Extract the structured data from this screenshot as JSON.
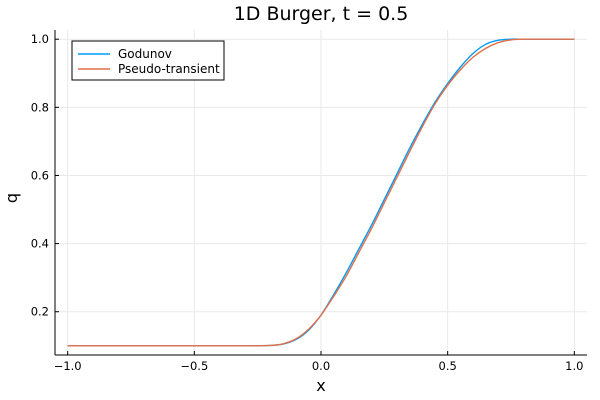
{
  "chart_data": {
    "type": "line",
    "title": "1D Burger, t = 0.5",
    "xlabel": "x",
    "ylabel": "q",
    "xlim": [
      -1.05,
      1.05
    ],
    "ylim": [
      0.073,
      1.027
    ],
    "xticks": [
      -1.0,
      -0.5,
      0.0,
      0.5,
      1.0
    ],
    "xtick_labels": [
      "−1.0",
      "−0.5",
      "0.0",
      "0.5",
      "1.0"
    ],
    "yticks": [
      0.2,
      0.4,
      0.6,
      0.8,
      1.0
    ],
    "ytick_labels": [
      "0.2",
      "0.4",
      "0.6",
      "0.8",
      "1.0"
    ],
    "grid": true,
    "legend_position": "top-left",
    "series": [
      {
        "name": "Godunov",
        "color": "#009AFA",
        "x": [
          -1.0,
          -0.5,
          -0.3,
          -0.2,
          -0.15,
          -0.1,
          -0.05,
          0.0,
          0.05,
          0.1,
          0.15,
          0.2,
          0.25,
          0.3,
          0.35,
          0.4,
          0.45,
          0.5,
          0.55,
          0.6,
          0.65,
          0.7,
          0.75,
          0.8,
          0.9,
          1.0
        ],
        "y": [
          0.1,
          0.1,
          0.1,
          0.101,
          0.105,
          0.118,
          0.145,
          0.19,
          0.25,
          0.315,
          0.385,
          0.455,
          0.53,
          0.605,
          0.68,
          0.75,
          0.815,
          0.87,
          0.918,
          0.958,
          0.985,
          0.997,
          1.0,
          1.0,
          1.0,
          1.0
        ]
      },
      {
        "name": "Pseudo-transient",
        "color": "#E26F46",
        "x": [
          -1.0,
          -0.5,
          -0.3,
          -0.2,
          -0.15,
          -0.1,
          -0.05,
          0.0,
          0.05,
          0.1,
          0.15,
          0.2,
          0.25,
          0.3,
          0.35,
          0.4,
          0.45,
          0.5,
          0.55,
          0.6,
          0.65,
          0.7,
          0.75,
          0.8,
          0.9,
          1.0
        ],
        "y": [
          0.1,
          0.1,
          0.1,
          0.101,
          0.106,
          0.12,
          0.148,
          0.19,
          0.245,
          0.305,
          0.375,
          0.445,
          0.52,
          0.595,
          0.67,
          0.743,
          0.81,
          0.865,
          0.91,
          0.947,
          0.973,
          0.99,
          0.998,
          1.0,
          1.0,
          1.0
        ]
      }
    ]
  }
}
